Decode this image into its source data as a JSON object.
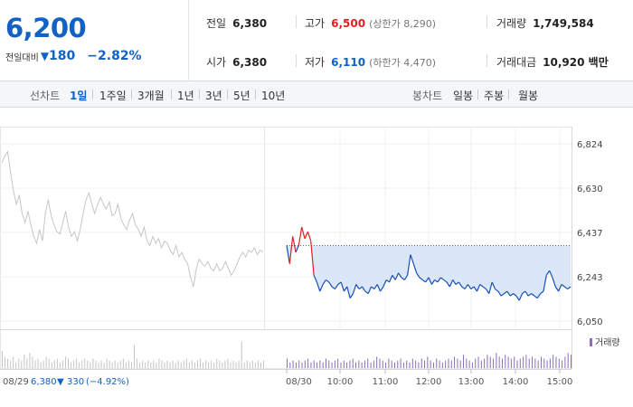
{
  "quote": {
    "price": "6,200",
    "change_label": "전일대비",
    "change_arrow": "▼",
    "change_abs": "180",
    "change_pct": "−2.82%",
    "down_color": "#1261c4",
    "up_color": "#e02020"
  },
  "stats": {
    "prev_close": {
      "label": "전일",
      "value": "6,380"
    },
    "high": {
      "label": "고가",
      "value": "6,500",
      "limit": "(상한가 8,290)"
    },
    "volume": {
      "label": "거래량",
      "value": "1,749,584"
    },
    "open": {
      "label": "시가",
      "value": "6,380"
    },
    "low": {
      "label": "저가",
      "value": "6,110",
      "limit": "(하한가 4,470)"
    },
    "amount": {
      "label": "거래대금",
      "value": "10,920 백만"
    }
  },
  "tabs": {
    "line_label": "선차트",
    "line_tabs": [
      "1일",
      "1주일",
      "3개월",
      "1년",
      "3년",
      "5년",
      "10년"
    ],
    "active": "1일",
    "candle_label": "봉차트",
    "candle_tabs": [
      "일봉",
      "주봉",
      "월봉"
    ]
  },
  "chart_data": {
    "type": "line",
    "y_ticks": [
      "6,824",
      "6,630",
      "6,437",
      "6,243",
      "6,050"
    ],
    "ylim": [
      6050,
      6824
    ],
    "prev_close_line": 6380,
    "x_labels": [
      "10:00",
      "11:00",
      "12:00",
      "13:00",
      "14:00",
      "15:00"
    ],
    "volume_legend": "거래량",
    "prev_day": {
      "date": "08/29",
      "close": "6,380",
      "arrow": "▼",
      "change": "330",
      "pct": "(−4.92%)",
      "color": "#c6c6c6",
      "values": [
        6740,
        6770,
        6790,
        6700,
        6620,
        6560,
        6600,
        6520,
        6480,
        6530,
        6470,
        6420,
        6390,
        6450,
        6400,
        6520,
        6580,
        6510,
        6470,
        6440,
        6430,
        6480,
        6530,
        6460,
        6420,
        6440,
        6400,
        6450,
        6520,
        6580,
        6610,
        6560,
        6520,
        6560,
        6590,
        6560,
        6540,
        6570,
        6510,
        6520,
        6560,
        6500,
        6470,
        6450,
        6490,
        6520,
        6470,
        6450,
        6420,
        6460,
        6400,
        6380,
        6420,
        6390,
        6410,
        6370,
        6400,
        6390,
        6360,
        6340,
        6380,
        6330,
        6350,
        6320,
        6300,
        6240,
        6200,
        6280,
        6320,
        6300,
        6290,
        6310,
        6280,
        6270,
        6300,
        6270,
        6280,
        6310,
        6280,
        6250,
        6270,
        6300,
        6330,
        6350,
        6330,
        6360,
        6350,
        6370,
        6340,
        6360,
        6350
      ]
    },
    "today": {
      "date": "08/30",
      "line_color": "#1550b8",
      "fill_color": "#dbe7f9",
      "high_color": "#e02020",
      "values": [
        6380,
        6300,
        6420,
        6350,
        6380,
        6460,
        6410,
        6440,
        6400,
        6250,
        6220,
        6180,
        6210,
        6230,
        6220,
        6200,
        6190,
        6210,
        6220,
        6180,
        6200,
        6150,
        6170,
        6210,
        6190,
        6200,
        6180,
        6170,
        6200,
        6190,
        6210,
        6180,
        6200,
        6230,
        6220,
        6250,
        6230,
        6260,
        6240,
        6230,
        6250,
        6340,
        6300,
        6260,
        6240,
        6230,
        6220,
        6240,
        6210,
        6230,
        6220,
        6240,
        6230,
        6220,
        6200,
        6230,
        6210,
        6220,
        6200,
        6190,
        6210,
        6190,
        6200,
        6180,
        6210,
        6200,
        6190,
        6170,
        6220,
        6190,
        6180,
        6160,
        6170,
        6180,
        6160,
        6170,
        6160,
        6140,
        6170,
        6180,
        6160,
        6170,
        6160,
        6150,
        6170,
        6180,
        6250,
        6270,
        6240,
        6200,
        6180,
        6210,
        6200,
        6190,
        6200
      ]
    },
    "volumes": [
      9,
      6,
      5,
      4,
      6,
      3,
      5,
      4,
      7,
      5,
      8,
      6,
      4,
      5,
      3,
      4,
      6,
      5,
      3,
      4,
      5,
      3,
      4,
      6,
      5,
      3,
      4,
      5,
      3,
      4,
      5,
      4,
      3,
      5,
      4,
      3,
      4,
      3,
      5,
      4,
      3,
      4,
      3,
      4,
      5,
      3,
      4,
      3,
      12,
      5,
      3,
      4,
      3,
      4,
      3,
      4,
      3,
      5,
      4,
      3,
      4,
      3,
      4,
      3,
      4,
      3,
      4,
      5,
      3,
      4,
      3,
      4,
      5,
      3,
      4,
      3,
      4,
      3,
      5,
      4,
      3,
      4,
      5,
      3,
      4,
      3,
      4,
      14,
      3,
      4,
      3,
      4,
      3,
      4,
      3,
      4,
      5,
      3,
      4,
      3,
      4,
      3,
      4,
      5,
      3,
      4,
      3,
      4,
      3,
      5,
      4,
      3,
      4,
      5,
      3,
      4,
      3,
      4,
      5,
      3,
      4,
      3,
      4,
      5,
      3,
      4,
      6,
      5,
      4,
      3,
      5,
      4,
      3,
      4,
      5,
      3,
      4,
      3,
      5,
      4,
      3,
      5,
      4,
      6,
      4,
      3,
      5,
      4,
      3,
      4,
      5,
      4,
      6,
      5,
      4,
      7,
      5,
      4,
      3,
      5,
      6,
      4,
      5,
      7,
      6,
      5,
      8,
      6,
      5,
      7,
      6,
      5,
      6,
      4,
      5,
      6,
      7,
      5,
      6,
      5,
      4,
      6,
      5,
      4,
      5,
      7,
      6,
      5,
      4,
      6,
      8,
      7
    ]
  }
}
